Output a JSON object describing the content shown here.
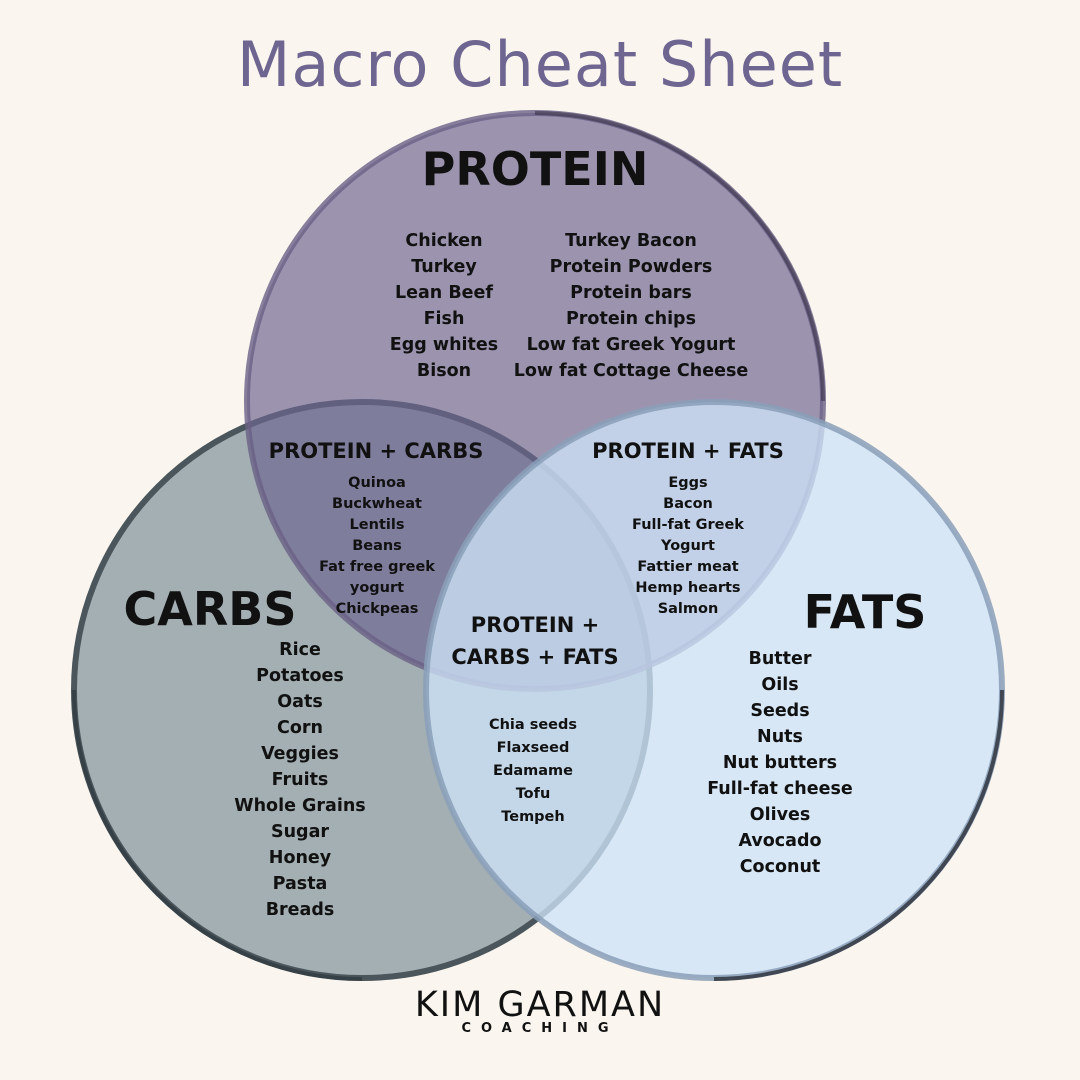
{
  "title": "Macro Cheat Sheet",
  "colors": {
    "title": "#6e6590",
    "protein": "#9a90ac",
    "carbs": "#a3afb3",
    "fats": "#cfe3f5"
  },
  "protein": {
    "label": "PROTEIN",
    "col1": [
      "Chicken",
      "Turkey",
      "Lean Beef",
      "Fish",
      "Egg whites",
      "Bison"
    ],
    "col2": [
      "Turkey Bacon",
      "Protein Powders",
      "Protein bars",
      "Protein chips",
      "Low fat Greek Yogurt",
      "Low fat Cottage Cheese"
    ]
  },
  "carbs": {
    "label": "CARBS",
    "items": [
      "Rice",
      "Potatoes",
      "Oats",
      "Corn",
      "Veggies",
      "Fruits",
      "Whole Grains",
      "Sugar",
      "Honey",
      "Pasta",
      "Breads"
    ]
  },
  "fats": {
    "label": "FATS",
    "items": [
      "Butter",
      "Oils",
      "Seeds",
      "Nuts",
      "Nut butters",
      "Full-fat cheese",
      "Olives",
      "Avocado",
      "Coconut"
    ]
  },
  "protein_carbs": {
    "label": "PROTEIN + CARBS",
    "items": [
      "Quinoa",
      "Buckwheat",
      "Lentils",
      "Beans",
      "Fat free greek",
      "yogurt",
      "Chickpeas"
    ]
  },
  "protein_fats": {
    "label": "PROTEIN + FATS",
    "items": [
      "Eggs",
      "Bacon",
      "Full-fat Greek",
      "Yogurt",
      "Fattier meat",
      "Hemp hearts",
      "Salmon"
    ]
  },
  "all_three": {
    "label_line1": "PROTEIN +",
    "label_line2": "CARBS + FATS",
    "items": [
      "Chia seeds",
      "Flaxseed",
      "Edamame",
      "Tofu",
      "Tempeh"
    ]
  },
  "logo": {
    "name": "KIM GARMAN",
    "sub": "COACHING"
  }
}
